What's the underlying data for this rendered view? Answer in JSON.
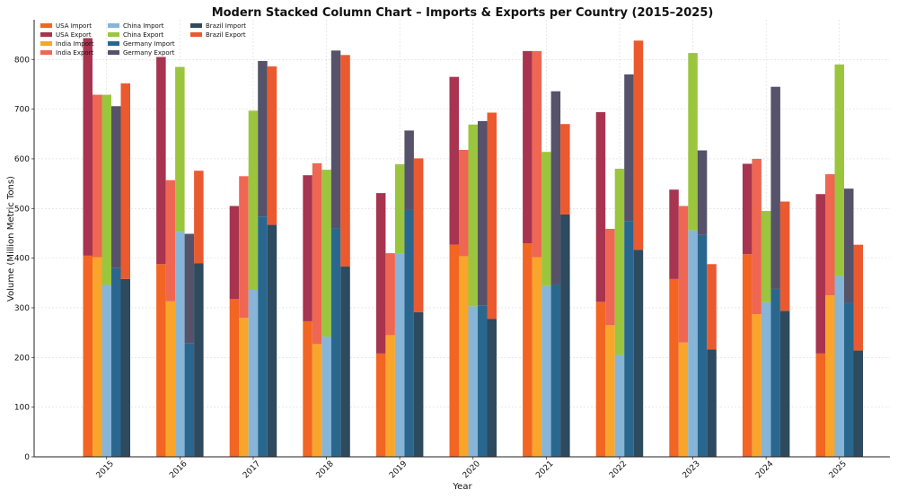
{
  "chart_data": {
    "type": "bar",
    "title": "Modern Stacked Column Chart – Imports & Exports per Country (2015–2025)",
    "xlabel": "Year",
    "ylabel": "Volume (Million Metric Tons)",
    "ylim": [
      0,
      880
    ],
    "yticks": [
      0,
      100,
      200,
      300,
      400,
      500,
      600,
      700,
      800
    ],
    "grid": true,
    "legend_position": "top-left",
    "categories": [
      "2015",
      "2016",
      "2017",
      "2018",
      "2019",
      "2020",
      "2021",
      "2022",
      "2023",
      "2024",
      "2025"
    ],
    "countries": [
      {
        "name": "USA",
        "import_name": "USA Import",
        "export_name": "USA Export",
        "import_color": "#f26522",
        "export_color": "#a8344f",
        "import": [
          405,
          388,
          318,
          273,
          208,
          427,
          430,
          312,
          358,
          408,
          208
        ],
        "total": [
          843,
          805,
          505,
          567,
          531,
          765,
          817,
          694,
          538,
          590,
          529
        ]
      },
      {
        "name": "India",
        "import_name": "India Import",
        "export_name": "India Export",
        "import_color": "#f9a52b",
        "export_color": "#ef6653",
        "import": [
          402,
          313,
          280,
          227,
          245,
          404,
          402,
          265,
          230,
          287,
          325
        ],
        "total": [
          729,
          557,
          565,
          591,
          410,
          618,
          817,
          459,
          505,
          600,
          569
        ]
      },
      {
        "name": "China",
        "import_name": "China Import",
        "export_name": "China Export",
        "import_color": "#86b5d8",
        "export_color": "#9bc53d",
        "import": [
          346,
          453,
          337,
          242,
          410,
          303,
          344,
          205,
          456,
          311,
          364
        ],
        "total": [
          729,
          785,
          697,
          578,
          589,
          669,
          614,
          580,
          813,
          495,
          790
        ]
      },
      {
        "name": "Germany",
        "import_name": "Germany Import",
        "export_name": "Germany Export",
        "import_color": "#2a678f",
        "export_color": "#55526a",
        "import": [
          380,
          228,
          484,
          460,
          497,
          305,
          347,
          475,
          447,
          338,
          310
        ],
        "total": [
          706,
          449,
          797,
          818,
          657,
          676,
          736,
          770,
          617,
          745,
          540
        ]
      },
      {
        "name": "Brazil",
        "import_name": "Brazil Import",
        "export_name": "Brazil Export",
        "import_color": "#2d4a5e",
        "export_color": "#ea5a2e",
        "import": [
          358,
          390,
          467,
          383,
          291,
          278,
          488,
          417,
          216,
          294,
          214
        ],
        "total": [
          752,
          576,
          786,
          809,
          601,
          693,
          670,
          838,
          388,
          514,
          427
        ]
      }
    ]
  }
}
